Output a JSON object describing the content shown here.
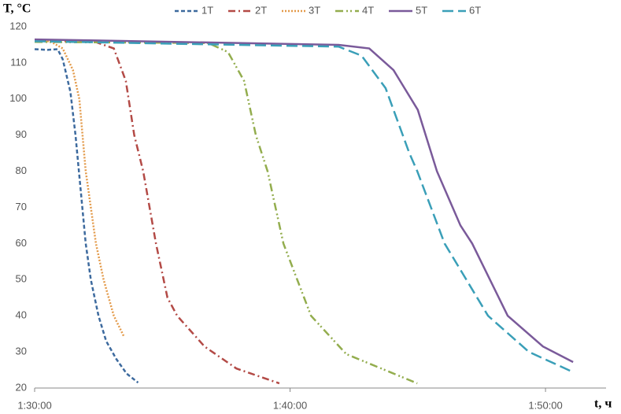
{
  "chart_data": {
    "type": "line",
    "y_label": "T, °C",
    "x_label": "t, ч",
    "xlim": [
      90,
      112.37
    ],
    "xticks": [
      {
        "value": 90,
        "label": "1:30:00"
      },
      {
        "value": 100,
        "label": "1:40:00"
      },
      {
        "value": 110,
        "label": "1:50:00"
      }
    ],
    "ylim": [
      20,
      120
    ],
    "yticks": [
      20,
      30,
      40,
      50,
      60,
      70,
      80,
      90,
      100,
      110,
      120
    ],
    "grid": false,
    "legend": "top",
    "series": [
      {
        "name": "1T",
        "color": "#3d6a9e",
        "style": "dashed",
        "x": [
          90,
          90.5,
          90.9,
          91.1,
          91.4,
          91.6,
          91.8,
          92.0,
          92.2,
          92.5,
          92.8,
          93.2,
          93.6,
          94.05
        ],
        "values": [
          113.8,
          113.6,
          113.8,
          111,
          102,
          90,
          75,
          60,
          50,
          40,
          33,
          28,
          24,
          21.5
        ]
      },
      {
        "name": "2T",
        "color": "#b34a46",
        "style": "dash-dot",
        "x": [
          90,
          92.3,
          93.1,
          93.57,
          93.9,
          94.25,
          94.75,
          95.2,
          95.58,
          96.65,
          97.9,
          99.58
        ],
        "values": [
          116,
          116,
          114,
          105,
          90,
          80,
          60,
          45,
          40,
          31.5,
          25.4,
          21.3
        ]
      },
      {
        "name": "3T",
        "color": "#e39a4a",
        "style": "dotted",
        "x": [
          90,
          90.6,
          91.1,
          91.5,
          91.75,
          92.0,
          92.4,
          92.7,
          93.1,
          93.5
        ],
        "values": [
          116,
          116,
          114,
          108,
          100,
          80,
          60,
          50,
          40,
          34.2
        ]
      },
      {
        "name": "4T",
        "color": "#93ad4e",
        "style": "dash-dot-dot",
        "x": [
          90,
          96.8,
          97.57,
          98.2,
          98.66,
          99.12,
          99.74,
          100.82,
          102.2,
          104.98
        ],
        "values": [
          115.8,
          115.5,
          113,
          105,
          90,
          80,
          60,
          40,
          29.4,
          21.3
        ]
      },
      {
        "name": "5T",
        "color": "#7a5a9a",
        "style": "solid",
        "x": [
          90,
          101.9,
          103.1,
          104.05,
          105,
          105.75,
          106.67,
          107.13,
          108.52,
          109.9,
          111.08
        ],
        "values": [
          116.5,
          115,
          114,
          108,
          97,
          80,
          65,
          60,
          40,
          31.5,
          27.2
        ]
      },
      {
        "name": "6T",
        "color": "#3a9fb8",
        "style": "long-dash",
        "x": [
          90,
          101.9,
          102.8,
          103.74,
          104.67,
          104.98,
          106.05,
          107.75,
          109.35,
          111.02
        ],
        "values": [
          116,
          114.5,
          112,
          103,
          85,
          80,
          60,
          40,
          30,
          24.6
        ]
      }
    ]
  }
}
